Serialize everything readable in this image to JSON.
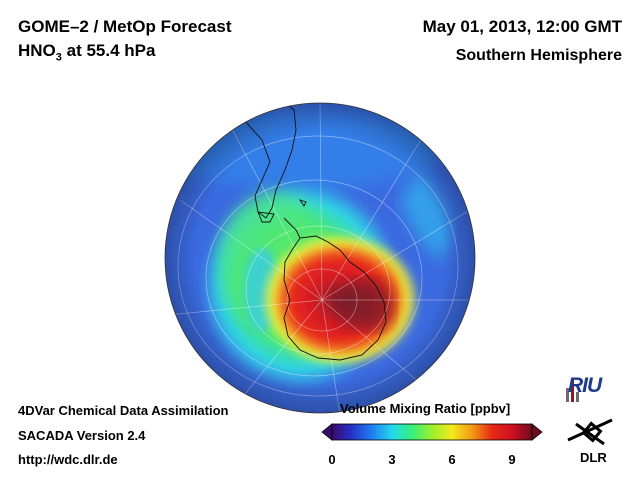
{
  "header": {
    "title": "GOME–2 / MetOp Forecast",
    "species_prefix": "HNO",
    "species_sub": "3",
    "species_suffix": " at 55.4 hPa",
    "datetime": "May 01, 2013, 12:00 GMT",
    "region": "Southern Hemisphere"
  },
  "footer": {
    "line1": "4DVar Chemical Data Assimilation",
    "line2": "SACADA Version 2.4",
    "line3": "http://wdc.dlr.de"
  },
  "colorbar": {
    "title": "Volume Mixing Ratio [ppbv]",
    "ticks": [
      "0",
      "3",
      "6",
      "9"
    ],
    "range": [
      0,
      10
    ],
    "colors": [
      "#3a0a6e",
      "#2433c9",
      "#1f7ef0",
      "#22d8ee",
      "#36f07a",
      "#9bf02a",
      "#f3ea1c",
      "#f39a12",
      "#e82a14",
      "#cf101e",
      "#6e0c1e"
    ]
  },
  "logos": {
    "riu": "RIU",
    "dlr": "DLR"
  },
  "map": {
    "projection": "orthographic south polar",
    "ocean_color": "#3d6fe0",
    "field_colors": [
      "#2e4fd9",
      "#2f8ff0",
      "#30d9e8",
      "#4fe66a",
      "#f0ef38",
      "#f0572a",
      "#e01e24",
      "#b01426",
      "#6e1a2a"
    ]
  }
}
